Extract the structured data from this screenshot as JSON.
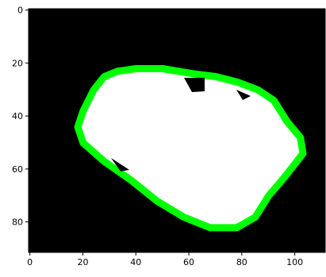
{
  "chart_data": {
    "type": "image",
    "xlim": [
      -0.5,
      111.5
    ],
    "ylim": [
      91.5,
      -0.5
    ],
    "xticks": [
      0,
      20,
      40,
      60,
      80,
      100
    ],
    "yticks": [
      0,
      20,
      40,
      60,
      80
    ]
  }
}
